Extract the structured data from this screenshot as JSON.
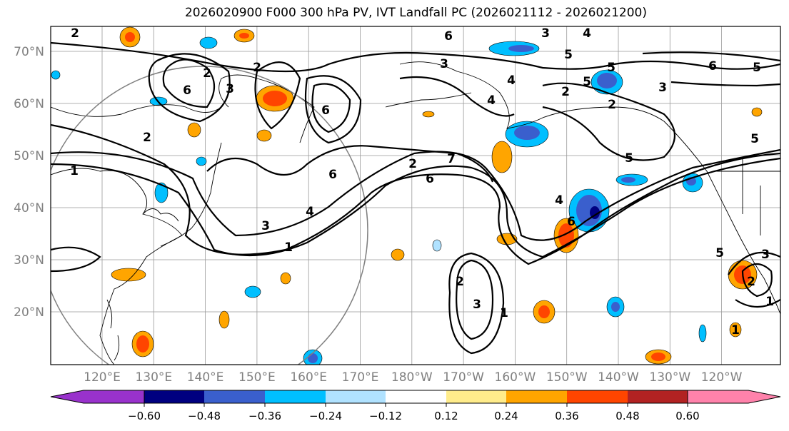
{
  "title": "2026020900 F000 300 hPa PV, IVT Landfall PC (2026021112 - 2026021200)",
  "lon_labels": [
    "120°E",
    "130°E",
    "140°E",
    "150°E",
    "160°E",
    "170°E",
    "180°W",
    "170°W",
    "160°W",
    "150°W",
    "140°W",
    "130°W",
    "120°W"
  ],
  "lat_labels": [
    "70°N",
    "60°N",
    "50°N",
    "40°N",
    "30°N",
    "20°N"
  ],
  "colorbar": {
    "ticks": [
      "−0.60",
      "−0.48",
      "−0.36",
      "−0.24",
      "−0.12",
      "0.12",
      "0.24",
      "0.36",
      "0.48",
      "0.60"
    ],
    "colors": [
      "#9932cc",
      "#000080",
      "#3a5fcd",
      "#00bfff",
      "#b0e2ff",
      "#ffffff",
      "#ffec8b",
      "#ffa500",
      "#ff4500",
      "#b22222",
      "#ff82ab"
    ]
  },
  "contour_labels": [
    "2",
    "6",
    "2",
    "3",
    "2",
    "6",
    "3",
    "5",
    "6",
    "4",
    "3",
    "4",
    "2",
    "5",
    "5",
    "6",
    "3",
    "2",
    "5",
    "5",
    "1",
    "2",
    "6",
    "4",
    "3",
    "1",
    "2",
    "7",
    "6",
    "4",
    "6",
    "3",
    "1",
    "3",
    "2",
    "1",
    "5",
    "1",
    "2",
    "4",
    "5"
  ]
}
